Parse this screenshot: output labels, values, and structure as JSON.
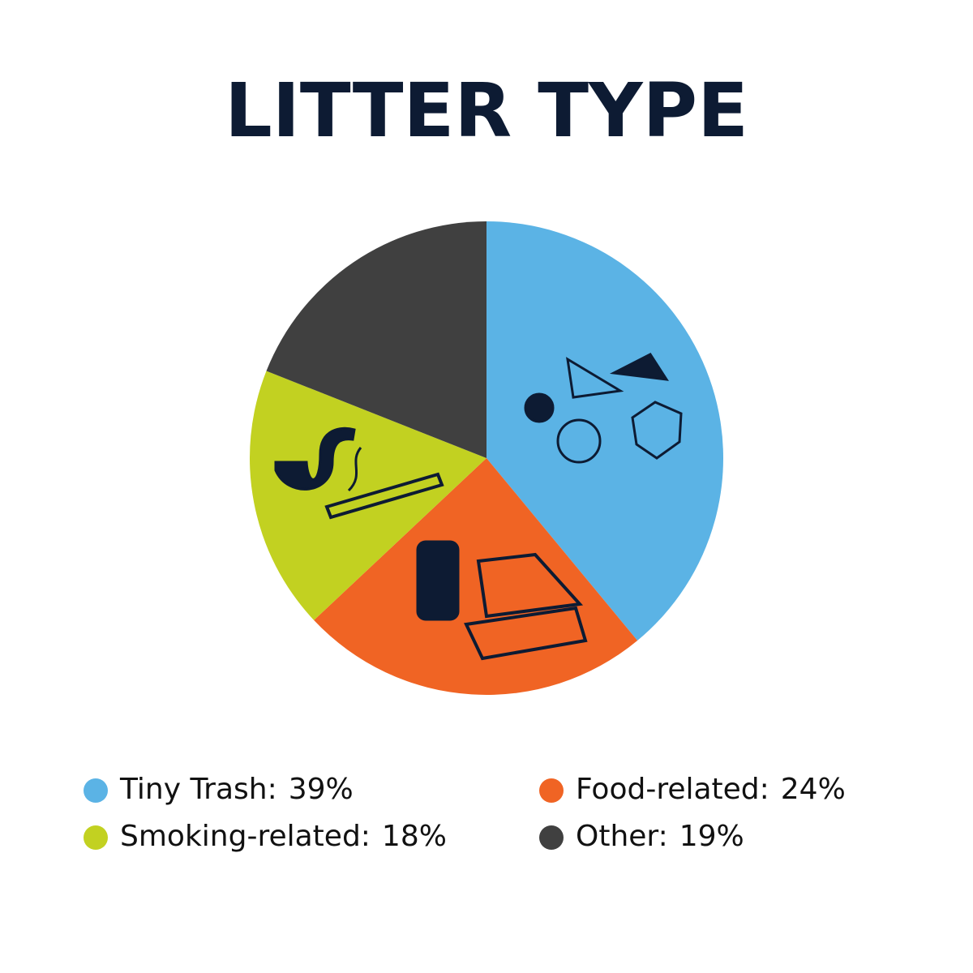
{
  "chart_data": {
    "type": "pie",
    "title": "LITTER TYPE",
    "categories": [
      "Tiny Trash:",
      "Food-related:",
      "Smoking-related:",
      "Other:"
    ],
    "values": [
      39,
      24,
      18,
      19
    ],
    "value_labels": [
      "39%",
      "24%",
      "18%",
      "19%"
    ],
    "colors": [
      "#5bb3e5",
      "#f06424",
      "#c2d121",
      "#404040"
    ]
  }
}
